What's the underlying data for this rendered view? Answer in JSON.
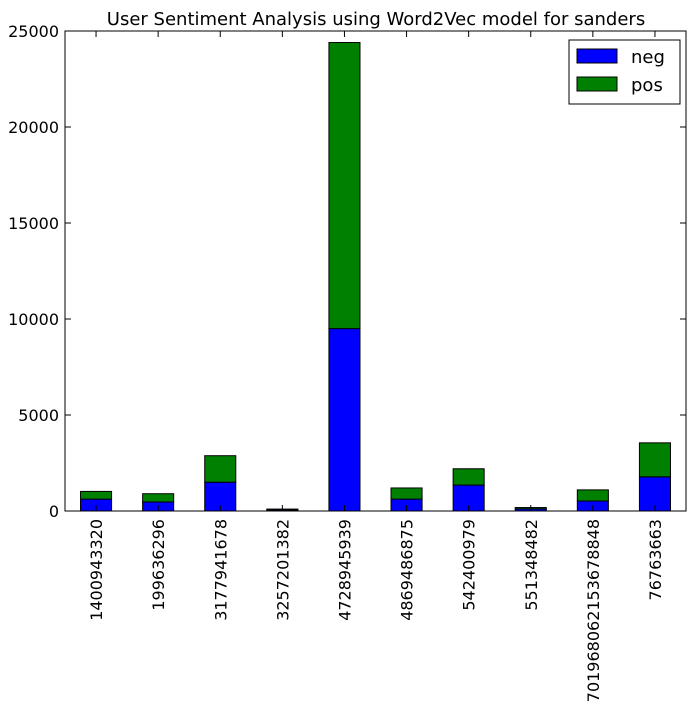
{
  "chart_data": {
    "type": "bar",
    "stacked": true,
    "title": "User Sentiment Analysis using Word2Vec model for sanders",
    "xlabel": "",
    "ylabel": "",
    "ylim": [
      0,
      25000
    ],
    "yticks": [
      0,
      5000,
      10000,
      15000,
      20000,
      25000
    ],
    "categories": [
      "1400943320",
      "199636296",
      "3177941678",
      "3257201382",
      "4728945939",
      "4869486875",
      "542400979",
      "551348482",
      "701968062153678848",
      "76763663"
    ],
    "series": [
      {
        "name": "neg",
        "color": "#0000ff",
        "values": [
          620,
          470,
          1500,
          60,
          9500,
          620,
          1350,
          110,
          520,
          1780
        ]
      },
      {
        "name": "pos",
        "color": "#008000",
        "values": [
          400,
          430,
          1380,
          40,
          14900,
          580,
          850,
          70,
          580,
          1770
        ]
      }
    ],
    "legend": "top-right",
    "grid": false
  }
}
